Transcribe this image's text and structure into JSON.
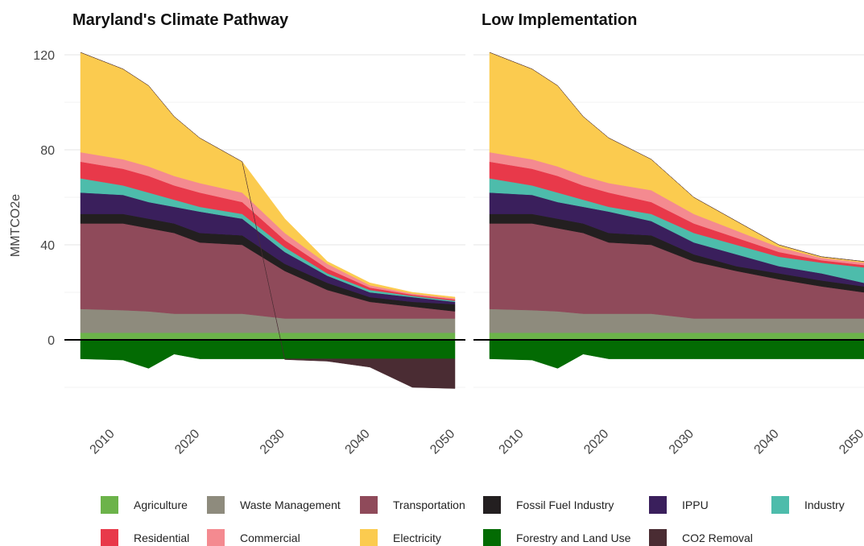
{
  "chart_data": [
    {
      "type": "area",
      "title": "Maryland's Climate Pathway",
      "y_label": "MMTCO2e",
      "x": [
        2006,
        2011,
        2014,
        2017,
        2020,
        2025,
        2030,
        2035,
        2040,
        2045,
        2050
      ],
      "xlim": [
        2006,
        2050
      ],
      "xticks": [
        2010,
        2020,
        2030,
        2040,
        2050
      ],
      "ylim": [
        -26,
        125
      ],
      "yticks": [
        0,
        40,
        80,
        120
      ],
      "grid": true,
      "stacked": true,
      "series": [
        {
          "name": "Agriculture",
          "color": "#6cb34a",
          "values": [
            3,
            3,
            3,
            3,
            3,
            3,
            3,
            3,
            3,
            3,
            3
          ]
        },
        {
          "name": "Waste Management",
          "color": "#8e8b7d",
          "values": [
            10,
            9.5,
            9,
            8,
            8,
            8,
            6,
            6,
            6,
            6,
            6
          ]
        },
        {
          "name": "Transportation",
          "color": "#8f4a5a",
          "values": [
            36,
            36.5,
            35,
            34,
            30,
            29,
            20,
            12,
            7,
            5,
            3
          ]
        },
        {
          "name": "Fossil Fuel Industry",
          "color": "#231f20",
          "values": [
            4,
            4,
            4,
            4,
            4,
            4,
            3,
            3,
            2,
            2,
            3
          ]
        },
        {
          "name": "IPPU",
          "color": "#3a1f5c",
          "values": [
            9,
            8,
            7,
            7,
            9,
            7,
            5,
            3,
            2,
            2,
            1
          ]
        },
        {
          "name": "Industry",
          "color": "#4dbcab",
          "values": [
            6,
            4,
            4,
            3,
            2,
            2,
            2,
            1,
            1,
            0.5,
            0.5
          ]
        },
        {
          "name": "Residential",
          "color": "#e8394a",
          "values": [
            7,
            7,
            7,
            6,
            6,
            5,
            3,
            2,
            1,
            0.5,
            0.5
          ]
        },
        {
          "name": "Commercial",
          "color": "#f48a90",
          "values": [
            4,
            4,
            4,
            4,
            4,
            4,
            3,
            2,
            1,
            0.5,
            0.5
          ]
        },
        {
          "name": "Electricity",
          "color": "#fbcb4f",
          "values": [
            42,
            38,
            34,
            25,
            19,
            13,
            6,
            1,
            1,
            0.5,
            0.5
          ]
        },
        {
          "name": "Forestry and Land Use",
          "color": "#036b03",
          "values": [
            -8,
            -8.5,
            -12,
            -6,
            -8,
            -8,
            -8,
            -8,
            -8,
            -8,
            -8
          ]
        },
        {
          "name": "CO2 Removal",
          "color": "#4a2c33",
          "values": [
            0,
            0,
            0,
            0,
            0,
            0,
            -0.3,
            -1,
            -3.5,
            -12,
            -12.5
          ]
        }
      ]
    },
    {
      "type": "area",
      "title": "Low Implementation",
      "x": [
        2006,
        2011,
        2014,
        2017,
        2020,
        2025,
        2030,
        2035,
        2040,
        2045,
        2050
      ],
      "xlim": [
        2006,
        2050
      ],
      "xticks": [
        2010,
        2020,
        2030,
        2040,
        2050
      ],
      "ylim": [
        -26,
        125
      ],
      "yticks": [
        0,
        40,
        80,
        120
      ],
      "grid": true,
      "stacked": true,
      "series": [
        {
          "name": "Agriculture",
          "color": "#6cb34a",
          "values": [
            3,
            3,
            3,
            3,
            3,
            3,
            3,
            3,
            3,
            3,
            3
          ]
        },
        {
          "name": "Waste Management",
          "color": "#8e8b7d",
          "values": [
            10,
            9.5,
            9,
            8,
            8,
            8,
            6,
            6,
            6,
            6,
            6
          ]
        },
        {
          "name": "Transportation",
          "color": "#8f4a5a",
          "values": [
            36,
            36.5,
            35,
            34,
            30,
            29,
            24,
            20,
            16.5,
            13.5,
            11
          ]
        },
        {
          "name": "Fossil Fuel Industry",
          "color": "#231f20",
          "values": [
            4,
            4,
            4,
            4,
            4,
            4,
            3,
            2,
            2.5,
            2.5,
            2.5
          ]
        },
        {
          "name": "IPPU",
          "color": "#3a1f5c",
          "values": [
            9,
            8,
            7,
            7,
            9,
            6,
            5,
            5,
            3,
            3,
            1.5
          ]
        },
        {
          "name": "Industry",
          "color": "#4dbcab",
          "values": [
            6,
            4,
            4,
            3,
            2,
            3,
            4,
            4,
            4,
            4.5,
            6.5
          ]
        },
        {
          "name": "Residential",
          "color": "#e8394a",
          "values": [
            7,
            7,
            7,
            6,
            6,
            5,
            4,
            3,
            2,
            1,
            1
          ]
        },
        {
          "name": "Commercial",
          "color": "#f48a90",
          "values": [
            4,
            4,
            4,
            4,
            4,
            5,
            4,
            3,
            2,
            1,
            1
          ]
        },
        {
          "name": "Electricity",
          "color": "#fbcb4f",
          "values": [
            42,
            38,
            34,
            25,
            19,
            13,
            7,
            4,
            1,
            0.5,
            0.5
          ]
        },
        {
          "name": "Forestry and Land Use",
          "color": "#036b03",
          "values": [
            -8,
            -8.5,
            -12,
            -6,
            -8,
            -8,
            -8,
            -8,
            -8,
            -8,
            -8
          ]
        },
        {
          "name": "CO2 Removal",
          "color": "#4a2c33",
          "values": [
            0,
            0,
            0,
            0,
            0,
            0,
            0,
            0,
            0,
            0,
            0
          ]
        }
      ]
    }
  ]
}
